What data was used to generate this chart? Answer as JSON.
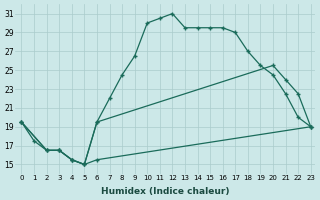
{
  "xlabel": "Humidex (Indice chaleur)",
  "bg_color": "#cce8e8",
  "grid_color": "#aacccc",
  "line_color": "#1a6b5a",
  "xmin": 0,
  "xmax": 23,
  "ymin": 14,
  "ymax": 32,
  "yticks": [
    15,
    17,
    19,
    21,
    23,
    25,
    27,
    29,
    31
  ],
  "xticks": [
    0,
    1,
    2,
    3,
    4,
    5,
    6,
    7,
    8,
    9,
    10,
    11,
    12,
    13,
    14,
    15,
    16,
    17,
    18,
    19,
    20,
    21,
    22,
    23
  ],
  "series1_x": [
    0,
    1,
    2,
    3,
    4,
    5,
    6,
    7,
    8,
    9,
    10,
    11,
    12,
    13,
    14,
    15,
    16,
    17,
    18,
    19,
    20,
    21,
    22,
    23
  ],
  "series1_y": [
    19.5,
    17.5,
    16.5,
    16.5,
    15.5,
    15.0,
    19.5,
    22.0,
    24.5,
    26.5,
    30.0,
    30.5,
    31.0,
    29.5,
    29.5,
    29.5,
    29.5,
    29.0,
    27.0,
    25.5,
    24.5,
    22.5,
    20.0,
    19.0
  ],
  "series2_x": [
    0,
    2,
    3,
    4,
    5,
    6,
    20,
    21,
    22,
    23
  ],
  "series2_y": [
    19.5,
    16.5,
    16.5,
    15.5,
    15.0,
    19.5,
    25.5,
    24.0,
    22.5,
    19.0
  ],
  "series3_x": [
    0,
    2,
    3,
    4,
    5,
    6,
    23
  ],
  "series3_y": [
    19.5,
    16.5,
    16.5,
    15.5,
    15.0,
    15.5,
    19.0
  ]
}
